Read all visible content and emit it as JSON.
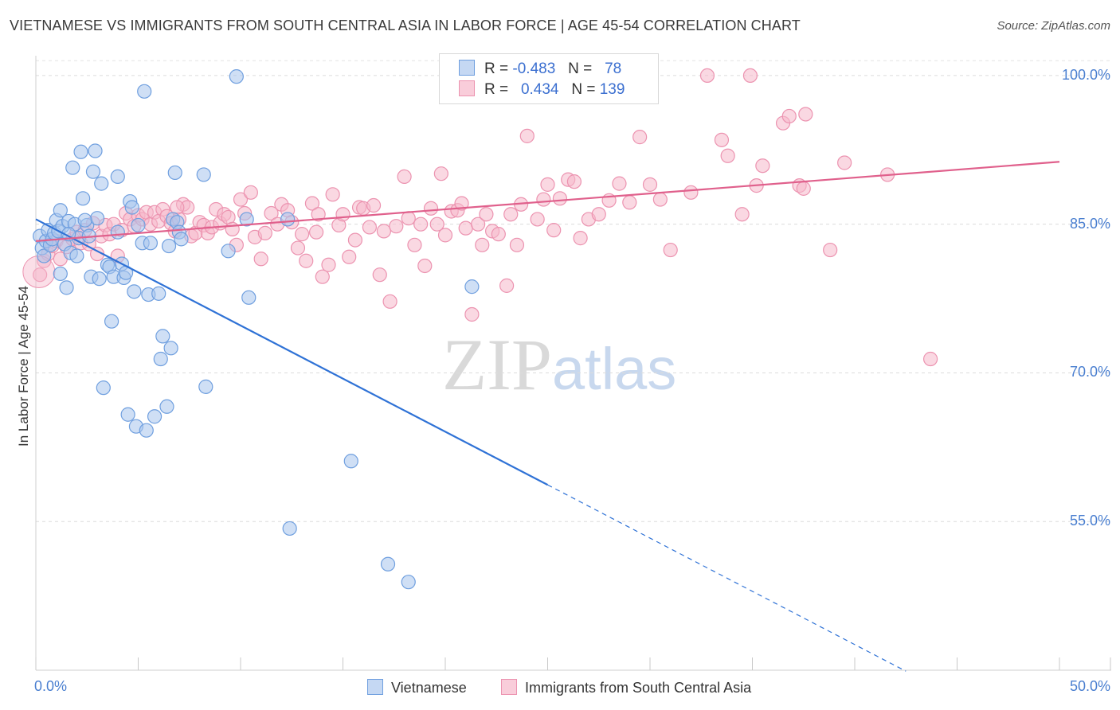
{
  "title": "VIETNAMESE VS IMMIGRANTS FROM SOUTH CENTRAL ASIA IN LABOR FORCE | AGE 45-54 CORRELATION CHART",
  "source": "Source: ZipAtlas.com",
  "watermark": {
    "zip": "ZIP",
    "atlas": "atlas"
  },
  "legend": {
    "r_label": "R =",
    "n_label": "N =",
    "rows": [
      {
        "r": "-0.483",
        "n": "78"
      },
      {
        "r": "0.434",
        "n": "139"
      }
    ]
  },
  "colors": {
    "blue_fill": "#a8c4ec",
    "blue_stroke": "#6f9fdf",
    "blue_line": "#2f72d6",
    "pink_fill": "#f6b8cb",
    "pink_stroke": "#ec93b0",
    "pink_line": "#e0608c"
  },
  "chart_data": {
    "type": "scatter",
    "title": "VIETNAMESE VS IMMIGRANTS FROM SOUTH CENTRAL ASIA IN LABOR FORCE | AGE 45-54 CORRELATION CHART",
    "xlabel": "",
    "ylabel": "In Labor Force | Age 45-54",
    "xlim": [
      0,
      50
    ],
    "ylim": [
      40,
      102
    ],
    "x_tick_labels": [
      "0.0%",
      "50.0%"
    ],
    "y_ticks": [
      55,
      70,
      85,
      100
    ],
    "y_tick_labels": [
      "55.0%",
      "70.0%",
      "85.0%",
      "100.0%"
    ],
    "grid": true,
    "legend_position": "top-center",
    "series": [
      {
        "name": "Vietnamese",
        "r": -0.483,
        "n": 78,
        "trend": {
          "x": [
            0,
            25
          ],
          "y": [
            85.5,
            58.7
          ],
          "dashed_to": [
            42.5,
            39.9
          ]
        },
        "points": [
          [
            0.2,
            83.8
          ],
          [
            0.3,
            82.6
          ],
          [
            0.4,
            81.8
          ],
          [
            0.5,
            83.3
          ],
          [
            0.6,
            84.4
          ],
          [
            0.7,
            82.9
          ],
          [
            0.8,
            83.5
          ],
          [
            0.9,
            84.1
          ],
          [
            1.0,
            85.4
          ],
          [
            1.1,
            84.3
          ],
          [
            1.2,
            80.0
          ],
          [
            1.2,
            86.4
          ],
          [
            1.3,
            84.8
          ],
          [
            1.4,
            83.0
          ],
          [
            1.5,
            78.6
          ],
          [
            1.6,
            85.3
          ],
          [
            1.7,
            82.1
          ],
          [
            1.8,
            90.7
          ],
          [
            1.9,
            85.0
          ],
          [
            2.0,
            81.8
          ],
          [
            2.1,
            83.6
          ],
          [
            2.2,
            92.3
          ],
          [
            2.3,
            87.6
          ],
          [
            2.5,
            84.9
          ],
          [
            2.6,
            83.8
          ],
          [
            2.7,
            79.7
          ],
          [
            2.8,
            90.3
          ],
          [
            2.9,
            92.4
          ],
          [
            3.0,
            85.6
          ],
          [
            3.1,
            79.5
          ],
          [
            3.2,
            89.1
          ],
          [
            3.3,
            68.5
          ],
          [
            3.5,
            80.9
          ],
          [
            3.6,
            80.7
          ],
          [
            3.7,
            75.2
          ],
          [
            3.8,
            79.7
          ],
          [
            4.0,
            84.2
          ],
          [
            4.0,
            89.8
          ],
          [
            4.2,
            81.0
          ],
          [
            4.3,
            79.6
          ],
          [
            4.4,
            80.1
          ],
          [
            4.5,
            65.8
          ],
          [
            4.6,
            87.3
          ],
          [
            4.7,
            86.7
          ],
          [
            4.8,
            78.2
          ],
          [
            4.9,
            64.6
          ],
          [
            5.0,
            84.9
          ],
          [
            5.2,
            83.1
          ],
          [
            5.3,
            98.4
          ],
          [
            5.4,
            64.2
          ],
          [
            5.5,
            77.9
          ],
          [
            5.6,
            83.1
          ],
          [
            5.8,
            65.6
          ],
          [
            6.0,
            78.0
          ],
          [
            6.1,
            71.4
          ],
          [
            6.2,
            73.7
          ],
          [
            6.4,
            66.6
          ],
          [
            6.5,
            82.8
          ],
          [
            6.6,
            72.5
          ],
          [
            6.7,
            85.5
          ],
          [
            6.8,
            90.2
          ],
          [
            6.9,
            85.2
          ],
          [
            7.0,
            84.2
          ],
          [
            7.1,
            83.5
          ],
          [
            8.2,
            90.0
          ],
          [
            8.3,
            68.6
          ],
          [
            9.4,
            82.3
          ],
          [
            9.8,
            99.9
          ],
          [
            10.3,
            85.5
          ],
          [
            10.4,
            77.6
          ],
          [
            12.3,
            85.5
          ],
          [
            12.4,
            54.3
          ],
          [
            15.4,
            61.1
          ],
          [
            17.2,
            50.7
          ],
          [
            18.2,
            48.9
          ],
          [
            21.3,
            78.7
          ],
          [
            2.4,
            85.4
          ],
          [
            1.6,
            84.0
          ]
        ]
      },
      {
        "name": "Immigrants from South Central Asia",
        "r": 0.434,
        "n": 139,
        "trend": {
          "x": [
            0,
            50
          ],
          "y": [
            83.3,
            91.3
          ]
        },
        "points": [
          [
            0.2,
            79.9
          ],
          [
            0.4,
            81.3
          ],
          [
            0.6,
            82.0
          ],
          [
            0.8,
            82.8
          ],
          [
            1.0,
            83.3
          ],
          [
            1.2,
            81.5
          ],
          [
            1.5,
            82.7
          ],
          [
            1.8,
            83.5
          ],
          [
            2.0,
            84.2
          ],
          [
            2.2,
            83.1
          ],
          [
            2.4,
            84.4
          ],
          [
            2.6,
            83.0
          ],
          [
            2.8,
            85.1
          ],
          [
            3.0,
            82.0
          ],
          [
            3.2,
            83.8
          ],
          [
            3.4,
            84.9
          ],
          [
            3.6,
            84.0
          ],
          [
            3.8,
            85.0
          ],
          [
            4.0,
            81.8
          ],
          [
            4.2,
            84.4
          ],
          [
            4.4,
            86.1
          ],
          [
            4.6,
            85.5
          ],
          [
            4.8,
            84.8
          ],
          [
            5.0,
            85.9
          ],
          [
            5.2,
            85.5
          ],
          [
            5.4,
            86.2
          ],
          [
            5.6,
            85.0
          ],
          [
            5.8,
            86.2
          ],
          [
            6.0,
            85.3
          ],
          [
            6.2,
            86.5
          ],
          [
            6.4,
            85.8
          ],
          [
            6.6,
            85.1
          ],
          [
            6.8,
            84.3
          ],
          [
            7.0,
            85.5
          ],
          [
            7.2,
            87.0
          ],
          [
            7.4,
            86.7
          ],
          [
            7.6,
            83.8
          ],
          [
            7.8,
            84.1
          ],
          [
            8.0,
            85.2
          ],
          [
            8.2,
            84.9
          ],
          [
            8.4,
            84.1
          ],
          [
            8.6,
            84.7
          ],
          [
            8.8,
            86.5
          ],
          [
            9.0,
            85.1
          ],
          [
            9.2,
            86.0
          ],
          [
            9.4,
            85.7
          ],
          [
            9.6,
            84.5
          ],
          [
            9.8,
            82.9
          ],
          [
            10.0,
            87.5
          ],
          [
            10.2,
            86.1
          ],
          [
            10.5,
            88.2
          ],
          [
            10.7,
            83.7
          ],
          [
            11.0,
            81.5
          ],
          [
            11.2,
            84.1
          ],
          [
            11.5,
            86.1
          ],
          [
            11.8,
            85.0
          ],
          [
            12.0,
            87.0
          ],
          [
            12.3,
            86.4
          ],
          [
            12.5,
            85.2
          ],
          [
            12.8,
            82.6
          ],
          [
            13.0,
            84.0
          ],
          [
            13.2,
            81.3
          ],
          [
            13.5,
            87.1
          ],
          [
            13.8,
            86.0
          ],
          [
            14.0,
            79.7
          ],
          [
            14.3,
            80.9
          ],
          [
            14.5,
            88.0
          ],
          [
            14.8,
            84.9
          ],
          [
            15.0,
            86.0
          ],
          [
            15.3,
            81.7
          ],
          [
            15.6,
            83.4
          ],
          [
            15.8,
            86.7
          ],
          [
            16.0,
            86.6
          ],
          [
            16.3,
            84.7
          ],
          [
            16.5,
            86.9
          ],
          [
            16.8,
            79.9
          ],
          [
            17.0,
            84.3
          ],
          [
            17.3,
            77.2
          ],
          [
            17.6,
            84.8
          ],
          [
            18.0,
            89.8
          ],
          [
            18.2,
            85.6
          ],
          [
            18.5,
            82.9
          ],
          [
            18.8,
            85.0
          ],
          [
            19.0,
            80.8
          ],
          [
            19.3,
            86.6
          ],
          [
            19.6,
            85.0
          ],
          [
            19.8,
            90.1
          ],
          [
            20.0,
            83.9
          ],
          [
            20.3,
            86.3
          ],
          [
            20.6,
            86.4
          ],
          [
            20.8,
            87.1
          ],
          [
            21.0,
            84.6
          ],
          [
            21.3,
            75.9
          ],
          [
            21.6,
            85.0
          ],
          [
            21.8,
            82.9
          ],
          [
            22.0,
            86.0
          ],
          [
            22.3,
            84.3
          ],
          [
            22.6,
            84.0
          ],
          [
            23.0,
            78.8
          ],
          [
            23.2,
            86.0
          ],
          [
            23.5,
            82.9
          ],
          [
            23.7,
            87.0
          ],
          [
            24.0,
            93.9
          ],
          [
            24.5,
            85.5
          ],
          [
            24.8,
            87.5
          ],
          [
            25.0,
            89.0
          ],
          [
            25.3,
            84.4
          ],
          [
            25.6,
            87.6
          ],
          [
            26.0,
            89.5
          ],
          [
            26.3,
            89.3
          ],
          [
            26.6,
            83.6
          ],
          [
            27.0,
            85.5
          ],
          [
            27.5,
            86.0
          ],
          [
            28.0,
            87.4
          ],
          [
            28.5,
            89.1
          ],
          [
            29.0,
            87.2
          ],
          [
            29.5,
            93.8
          ],
          [
            30.0,
            89.0
          ],
          [
            30.5,
            87.5
          ],
          [
            31.0,
            82.4
          ],
          [
            32.0,
            88.2
          ],
          [
            32.8,
            100.0
          ],
          [
            33.5,
            93.5
          ],
          [
            33.8,
            91.9
          ],
          [
            34.5,
            86.0
          ],
          [
            34.9,
            100.0
          ],
          [
            35.2,
            88.9
          ],
          [
            35.5,
            90.9
          ],
          [
            36.5,
            95.2
          ],
          [
            36.8,
            95.9
          ],
          [
            37.3,
            88.9
          ],
          [
            37.5,
            88.6
          ],
          [
            37.6,
            96.1
          ],
          [
            38.8,
            82.4
          ],
          [
            39.5,
            91.2
          ],
          [
            41.6,
            90.0
          ],
          [
            43.7,
            71.4
          ],
          [
            13.7,
            84.2
          ],
          [
            6.9,
            86.7
          ]
        ]
      }
    ]
  }
}
